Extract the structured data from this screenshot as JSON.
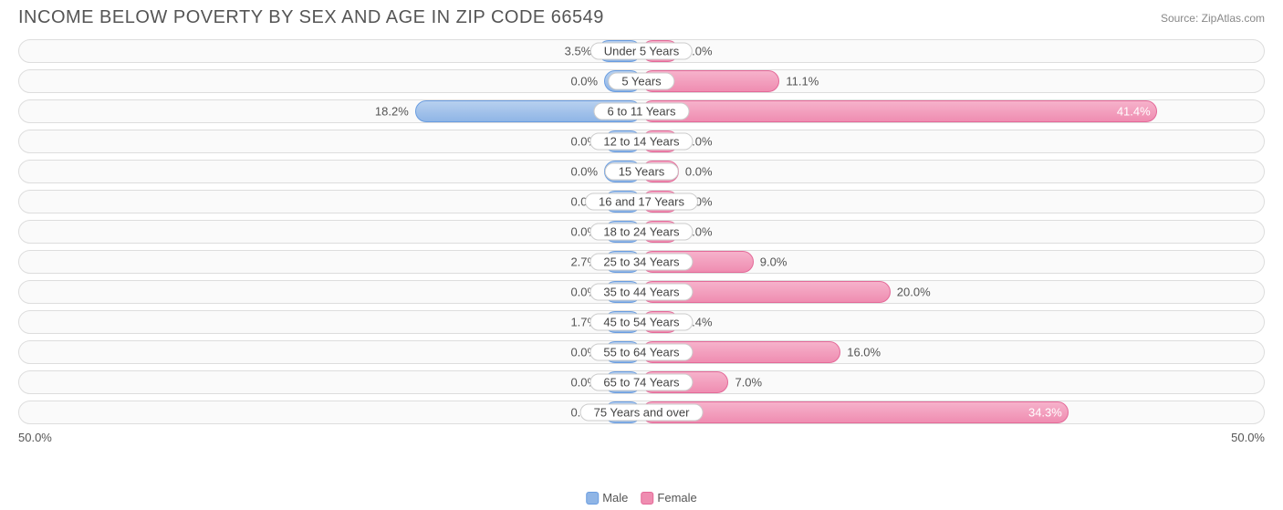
{
  "title": "INCOME BELOW POVERTY BY SEX AND AGE IN ZIP CODE 66549",
  "source": "Source: ZipAtlas.com",
  "axis_max": 50.0,
  "axis_label_left": "50.0%",
  "axis_label_right": "50.0%",
  "min_bar_pct": 6.0,
  "value_inside_threshold": 30.0,
  "legend": {
    "male": "Male",
    "female": "Female"
  },
  "colors": {
    "male_fill_top": "#b7d0ef",
    "male_fill_bottom": "#8fb5e6",
    "male_border": "#6a9de0",
    "female_fill_top": "#f6b2cb",
    "female_fill_bottom": "#ef8db1",
    "female_border": "#e46a99",
    "row_border": "#dddddd",
    "row_bg": "#fafafa",
    "text": "#555555",
    "title_color": "#555555",
    "background": "#ffffff"
  },
  "rows": [
    {
      "label": "Under 5 Years",
      "male": 3.5,
      "female": 0.0,
      "male_label": "3.5%",
      "female_label": "0.0%"
    },
    {
      "label": "5 Years",
      "male": 0.0,
      "female": 11.1,
      "male_label": "0.0%",
      "female_label": "11.1%"
    },
    {
      "label": "6 to 11 Years",
      "male": 18.2,
      "female": 41.4,
      "male_label": "18.2%",
      "female_label": "41.4%"
    },
    {
      "label": "12 to 14 Years",
      "male": 0.0,
      "female": 0.0,
      "male_label": "0.0%",
      "female_label": "0.0%"
    },
    {
      "label": "15 Years",
      "male": 0.0,
      "female": 0.0,
      "male_label": "0.0%",
      "female_label": "0.0%"
    },
    {
      "label": "16 and 17 Years",
      "male": 0.0,
      "female": 0.0,
      "male_label": "0.0%",
      "female_label": "0.0%"
    },
    {
      "label": "18 to 24 Years",
      "male": 0.0,
      "female": 0.0,
      "male_label": "0.0%",
      "female_label": "0.0%"
    },
    {
      "label": "25 to 34 Years",
      "male": 2.7,
      "female": 9.0,
      "male_label": "2.7%",
      "female_label": "9.0%"
    },
    {
      "label": "35 to 44 Years",
      "male": 0.0,
      "female": 20.0,
      "male_label": "0.0%",
      "female_label": "20.0%"
    },
    {
      "label": "45 to 54 Years",
      "male": 1.7,
      "female": 2.4,
      "male_label": "1.7%",
      "female_label": "2.4%"
    },
    {
      "label": "55 to 64 Years",
      "male": 0.0,
      "female": 16.0,
      "male_label": "0.0%",
      "female_label": "16.0%"
    },
    {
      "label": "65 to 74 Years",
      "male": 0.0,
      "female": 7.0,
      "male_label": "0.0%",
      "female_label": "7.0%"
    },
    {
      "label": "75 Years and over",
      "male": 0.0,
      "female": 34.3,
      "male_label": "0.0%",
      "female_label": "34.3%"
    }
  ]
}
